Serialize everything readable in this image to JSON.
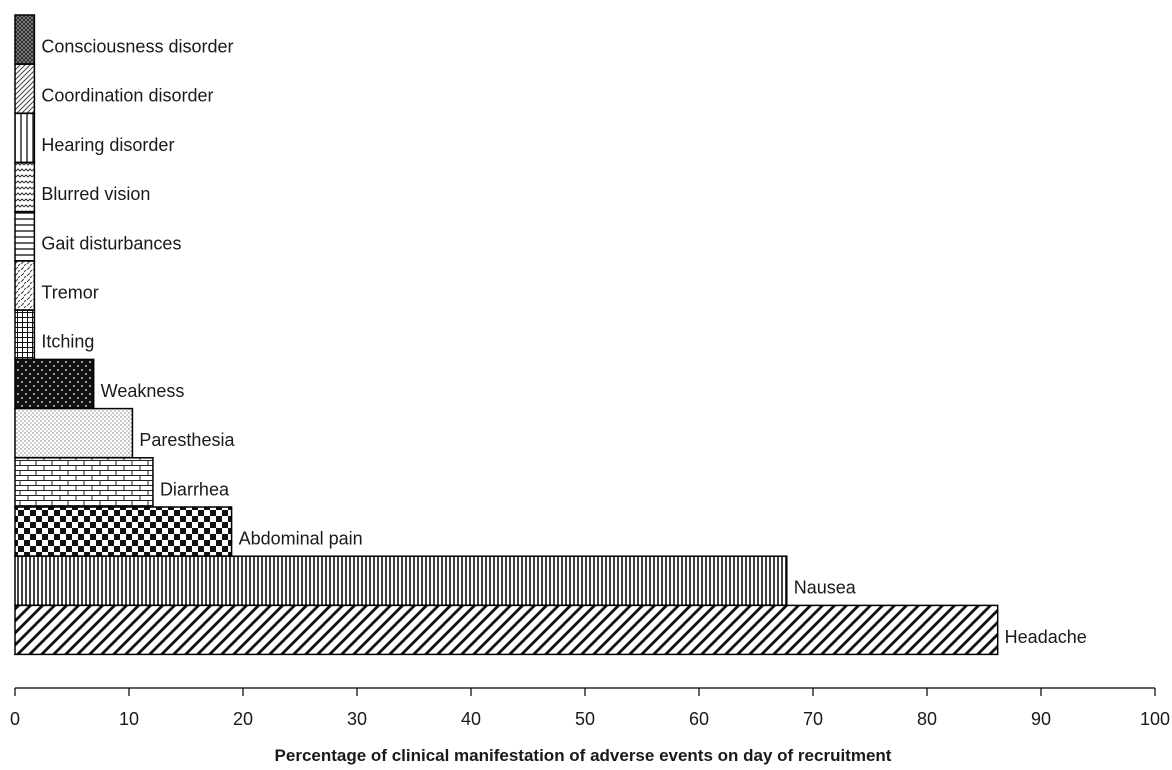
{
  "chart_data": {
    "type": "bar",
    "orientation": "horizontal",
    "categories": [
      "Consciousness disorder",
      "Coordination disorder",
      "Hearing disorder",
      "Blurred vision",
      "Gait disturbances",
      "Tremor",
      "Itching",
      "Weakness",
      "Paresthesia",
      "Diarrhea",
      "Abdominal pain",
      "Nausea",
      "Headache"
    ],
    "values": [
      1.7,
      1.7,
      1.7,
      1.7,
      1.7,
      1.7,
      1.7,
      6.9,
      10.3,
      12.1,
      19.0,
      67.7,
      86.2
    ],
    "patterns": [
      "crosshatch-dense",
      "diagonal-light",
      "vertical-wide",
      "wave",
      "horizontal",
      "dashed-diagonal",
      "grid",
      "dots-on-black",
      "sparse-dots",
      "brick",
      "checkerboard",
      "vertical-dense",
      "diagonal-wide"
    ],
    "xlim": [
      0,
      100
    ],
    "xticks": [
      "0",
      "10",
      "20",
      "30",
      "40",
      "50",
      "60",
      "70",
      "80",
      "90",
      "100"
    ],
    "xlabel": "Percentage of clinical manifestation of adverse events on day of recruitment",
    "ylabel": "",
    "title": "",
    "grid": false,
    "legend": "none",
    "colors": {
      "fill": "#ffffff",
      "ink": "#000000",
      "text": "#1a1a1a"
    }
  }
}
